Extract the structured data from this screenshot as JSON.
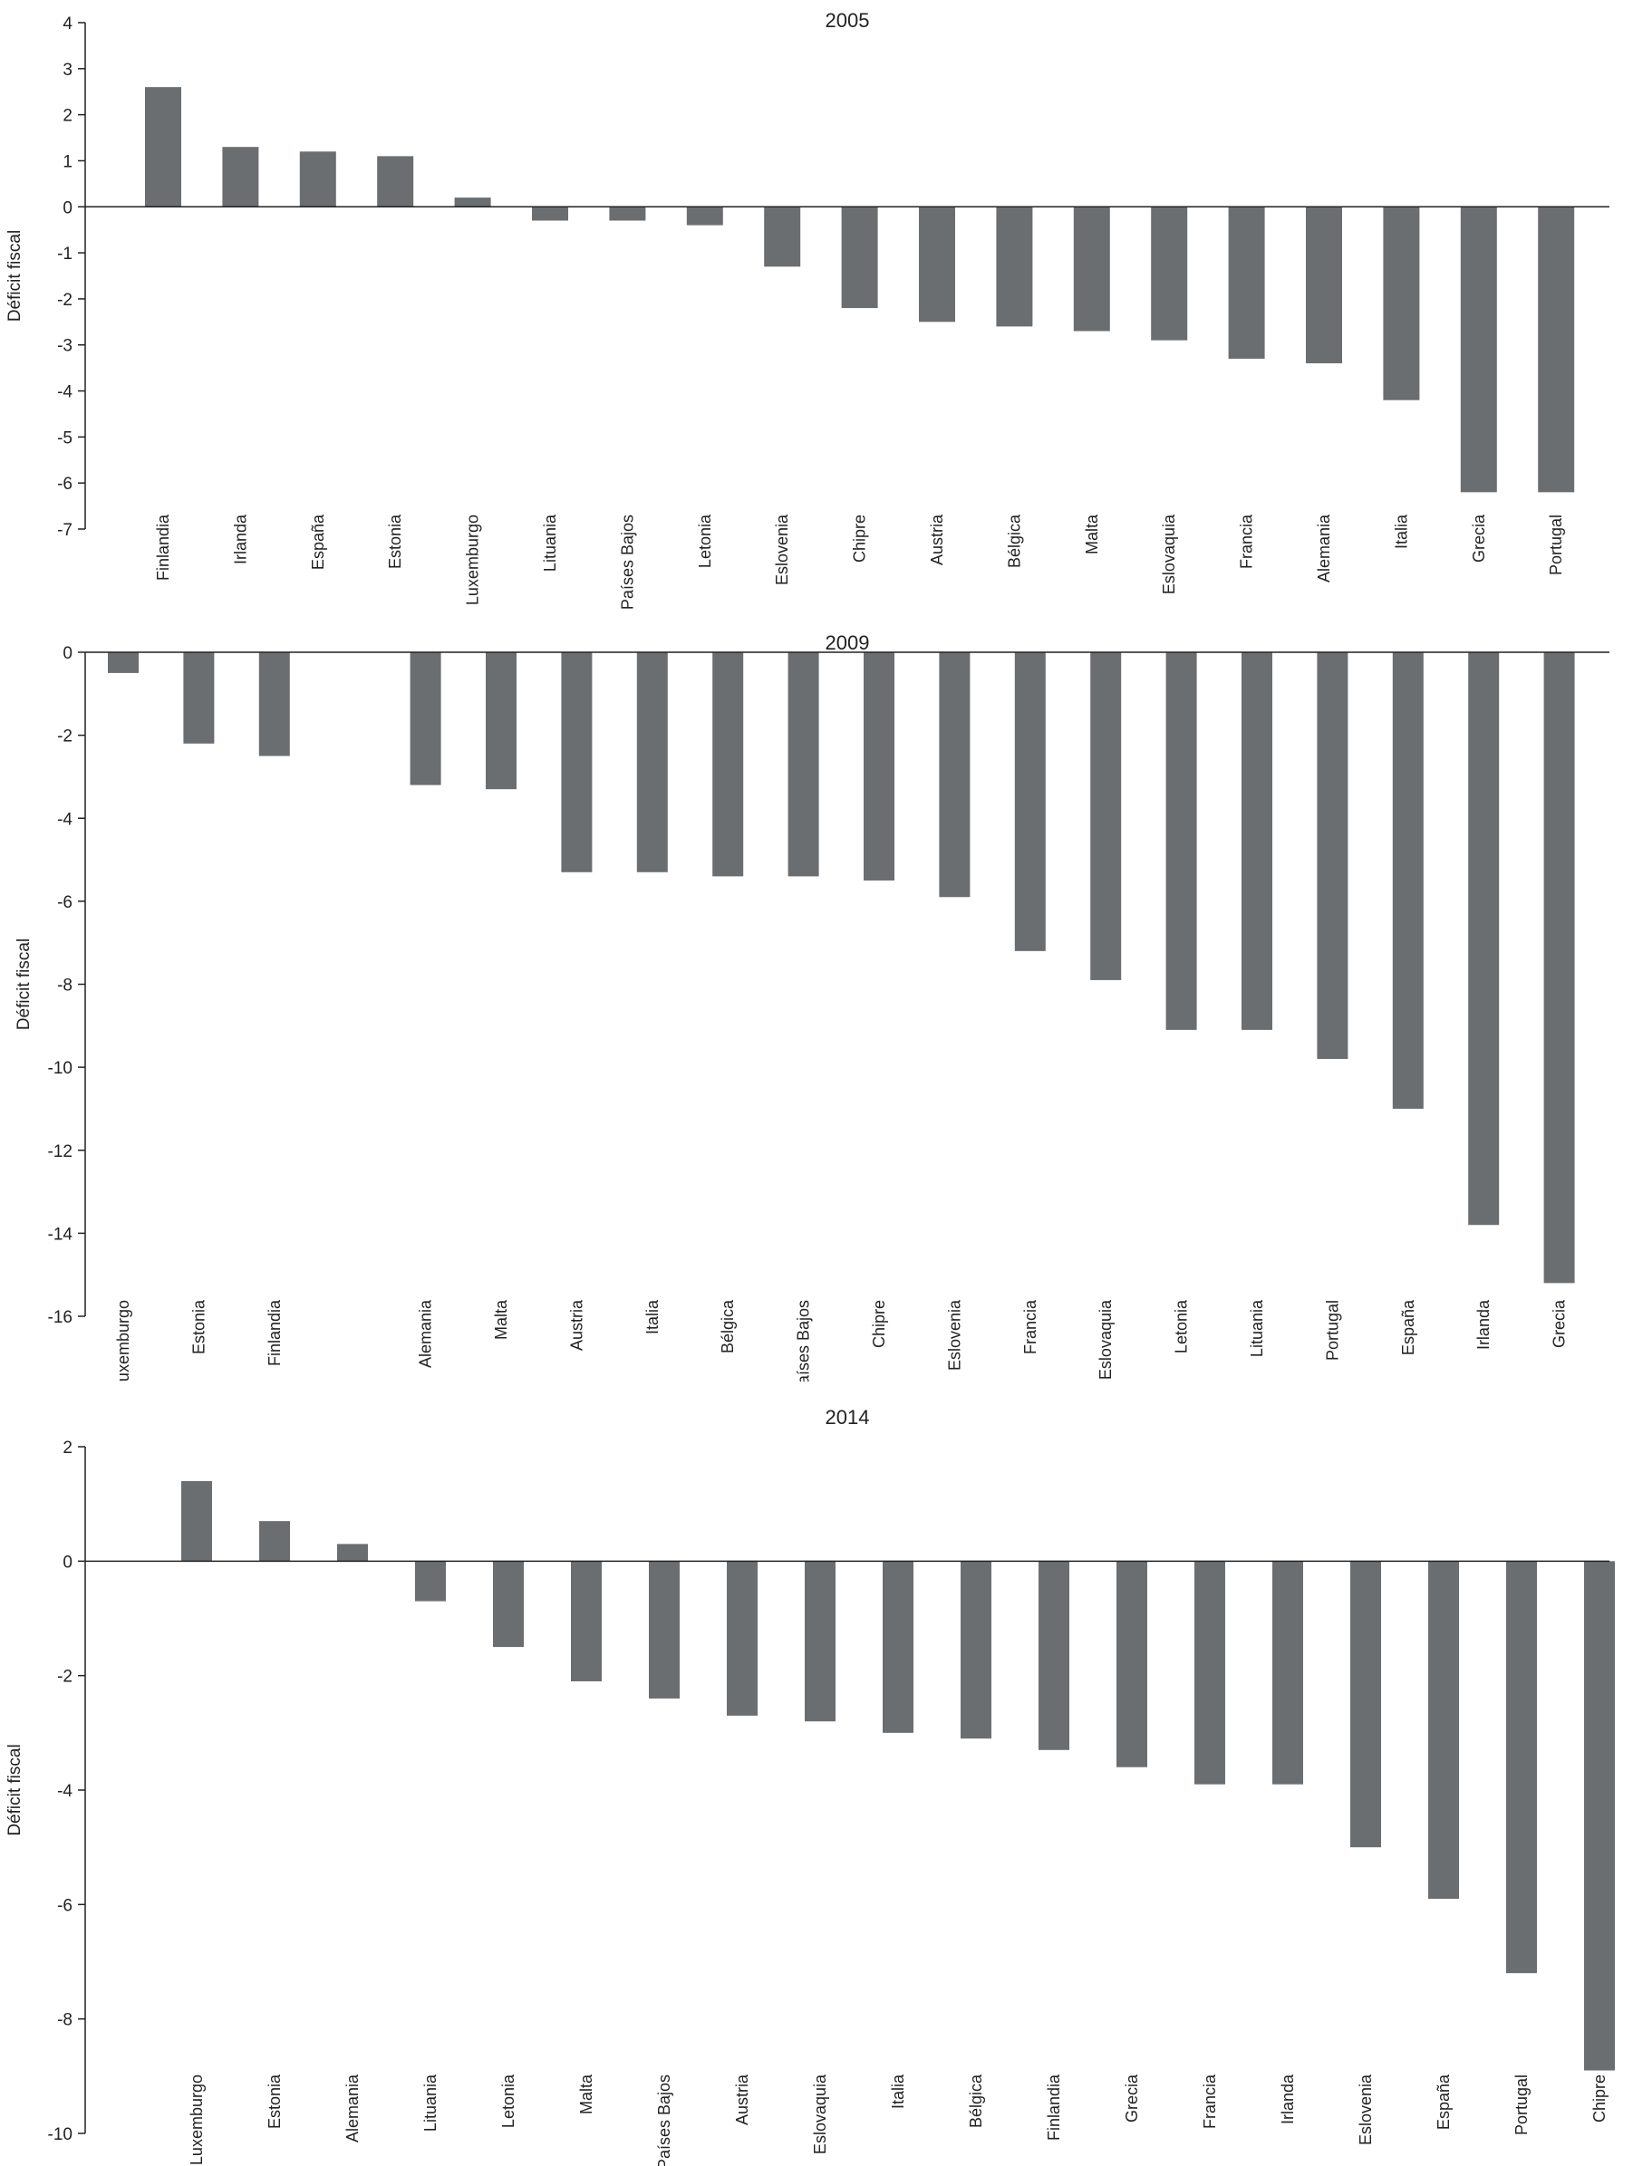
{
  "colors": {
    "bar": "#6b6e70",
    "axis": "#222222"
  },
  "chart_data": [
    {
      "type": "bar",
      "title": "2005",
      "ylabel": "Déficit fiscal",
      "ylim": [
        -7,
        4
      ],
      "yticks": [
        "-7",
        "-6",
        "-5",
        "-4",
        "-3",
        "-2",
        "-1",
        "0",
        "1",
        "2",
        "3",
        "4"
      ],
      "categories": [
        "Finlandia",
        "Irlanda",
        "España",
        "Estonia",
        "Luxemburgo",
        "Lituania",
        "Países Bajos",
        "Letonia",
        "Eslovenia",
        "Chipre",
        "Austria",
        "Bélgica",
        "Malta",
        "Eslovaquia",
        "Francia",
        "Alemania",
        "Italia",
        "Grecia",
        "Portugal"
      ],
      "values": [
        2.6,
        1.3,
        1.2,
        1.1,
        0.2,
        -0.3,
        -0.3,
        -0.4,
        -1.3,
        -2.2,
        -2.5,
        -2.6,
        -2.7,
        -2.9,
        -3.3,
        -3.4,
        -4.2,
        -6.2,
        -6.2
      ]
    },
    {
      "type": "bar",
      "title": "2009",
      "ylabel": "Déficit fiscal",
      "ylim": [
        -16,
        0
      ],
      "yticks": [
        "-16",
        "-14",
        "-12",
        "-10",
        "-8",
        "-6",
        "-4",
        "-2",
        "0"
      ],
      "categories": [
        "Luxemburgo",
        "Estonia",
        "Finlandia",
        "",
        "Alemania",
        "Malta",
        "Austria",
        "Italia",
        "Bélgica",
        "Países Bajos",
        "Chipre",
        "Eslovenia",
        "Francia",
        "Eslovaquia",
        "Letonia",
        "Lituania",
        "Portugal",
        "España",
        "Irlanda",
        "Grecia"
      ],
      "values": [
        -0.5,
        -2.2,
        -2.5,
        null,
        -3.2,
        -3.3,
        -5.3,
        -5.3,
        -5.4,
        -5.4,
        -5.5,
        -5.9,
        -7.2,
        -7.9,
        -9.1,
        -9.1,
        -9.8,
        -11.0,
        -13.8,
        -15.2
      ]
    },
    {
      "type": "bar",
      "title": "2014",
      "ylabel": "Déficit fiscal",
      "ylim": [
        -10,
        2
      ],
      "yticks": [
        "-10",
        "-8",
        "-6",
        "-4",
        "-2",
        "0",
        "2"
      ],
      "categories": [
        "Luxemburgo",
        "Estonia",
        "Alemania",
        "Lituania",
        "Letonia",
        "Malta",
        "Países Bajos",
        "Austria",
        "Eslovaquia",
        "Italia",
        "Bélgica",
        "Finlandia",
        "Grecia",
        "Francia",
        "Irlanda",
        "Eslovenia",
        "España",
        "Portugal",
        "Chipre"
      ],
      "values": [
        1.4,
        0.7,
        0.3,
        -0.7,
        -1.5,
        -2.1,
        -2.4,
        -2.7,
        -2.8,
        -3.0,
        -3.1,
        -3.3,
        -3.6,
        -3.9,
        -3.9,
        -5.0,
        -5.9,
        -7.2,
        -8.9
      ]
    }
  ]
}
